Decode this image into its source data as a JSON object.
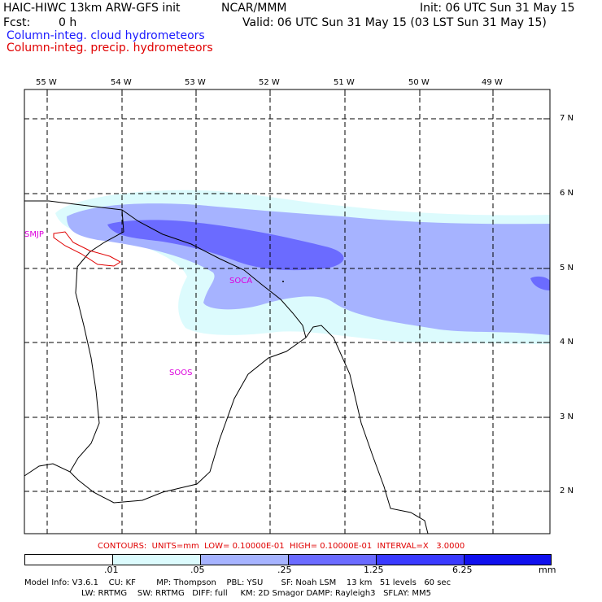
{
  "header": {
    "model_title": "HAIC-HIWC 13km ARW-GFS init",
    "org": "NCAR/MMM",
    "init": "Init: 06 UTC Sun 31 May 15",
    "fcst_label": "Fcst:",
    "fcst_value": "0 h",
    "valid": "Valid: 06 UTC Sun 31 May 15 (03 LST Sun 31 May 15)",
    "field1": "Column-integ. cloud hydrometeors",
    "field2": "Column-integ. precip. hydrometeors"
  },
  "colors": {
    "field1": "#1a1aff",
    "field2": "#e00000",
    "shade_1": "#dcfbfd",
    "shade_2": "#a6b3ff",
    "shade_3": "#6b6bff",
    "shade_4": "#3a3aff",
    "shade_5": "#1010ee",
    "station": "#dd00dd",
    "contour": "#e00000"
  },
  "axes": {
    "lon_labels": [
      "55 W",
      "54 W",
      "53 W",
      "52 W",
      "51 W",
      "50 W",
      "49 W"
    ],
    "lat_labels": [
      "7 N",
      "6 N",
      "5 N",
      "4 N",
      "3 N",
      "2 N"
    ]
  },
  "stations": [
    "SMJP",
    "SOCA",
    "SOOS"
  ],
  "contours_line": "CONTOURS:  UNITS=mm  LOW= 0.10000E-01  HIGH= 0.10000E-01  INTERVAL=X   3.0000",
  "legend": {
    "ticks": [
      ".01",
      ".05",
      ".25",
      "1.25",
      "6.25"
    ],
    "units": "mm"
  },
  "footer": {
    "line1": "Model Info: V3.6.1    CU: KF        MP: Thompson    PBL: YSU       SF: Noah LSM    13 km   51 levels   60 sec",
    "line2": "LW: RRTMG    SW: RRTMG   DIFF: full     KM: 2D Smagor DAMP: Rayleigh3   SFLAY: MM5"
  }
}
